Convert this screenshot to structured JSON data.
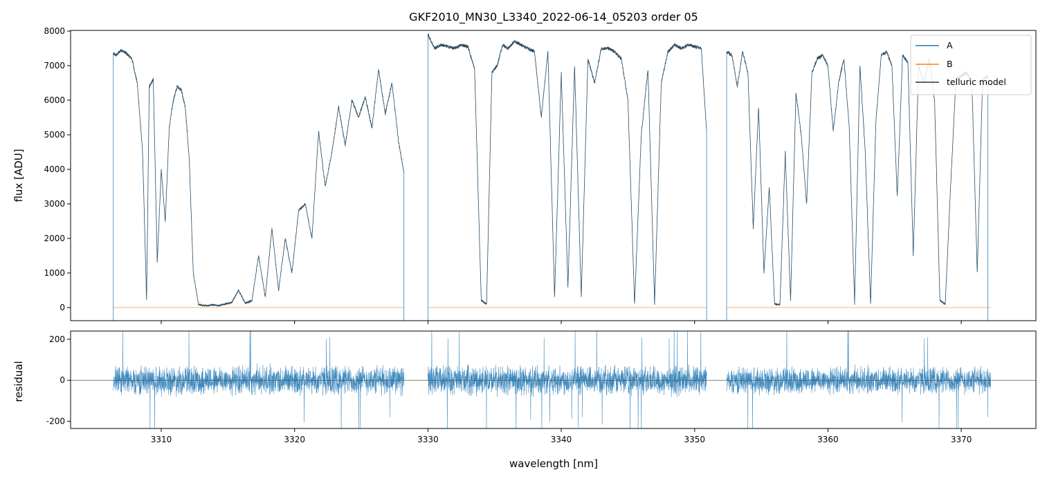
{
  "chart_data": [
    {
      "type": "line",
      "title": "GKF2010_MN30_L3340_2022-06-14_05203  order 05",
      "xlabel": "",
      "ylabel": "flux [ADU]",
      "xlim": [
        3303.2,
        3375.6
      ],
      "ylim": [
        -380,
        8020
      ],
      "yticks": [
        0,
        1000,
        2000,
        3000,
        4000,
        5000,
        6000,
        7000,
        8000
      ],
      "xticks": [
        3310,
        3320,
        3330,
        3340,
        3350,
        3360,
        3370
      ],
      "grid": false,
      "legend": {
        "position": "top-right",
        "entries": [
          {
            "label": "A",
            "color": "#1f77b4"
          },
          {
            "label": "B",
            "color": "#ff7f0e"
          },
          {
            "label": "telluric model",
            "color": "#333333"
          }
        ]
      },
      "series": [
        {
          "name": "A",
          "color": "#1f77b4",
          "segments": [
            {
              "x": [
                3306.4,
                3306.6,
                3307.0,
                3307.4,
                3307.8,
                3308.2,
                3308.6,
                3308.9,
                3309.1,
                3309.4,
                3309.7,
                3310.0,
                3310.3,
                3310.6,
                3310.9,
                3311.2,
                3311.5,
                3311.8,
                3312.1,
                3312.4,
                3312.8,
                3313.3,
                3313.8,
                3314.3,
                3314.8,
                3315.3,
                3315.8,
                3316.3,
                3316.8,
                3317.3,
                3317.8,
                3318.3,
                3318.8,
                3319.3,
                3319.8,
                3320.3,
                3320.8,
                3321.3,
                3321.8,
                3322.3,
                3322.8,
                3323.3,
                3323.8,
                3324.3,
                3324.8,
                3325.3,
                3325.8,
                3326.3,
                3326.8,
                3327.3,
                3327.8,
                3328.2
              ],
              "y": [
                7350,
                7300,
                7450,
                7350,
                7200,
                6500,
                4500,
                200,
                6400,
                6600,
                1300,
                4000,
                2500,
                5200,
                6000,
                6400,
                6300,
                5800,
                4300,
                1000,
                80,
                50,
                80,
                60,
                100,
                150,
                500,
                120,
                200,
                1500,
                300,
                2300,
                500,
                2000,
                1000,
                2800,
                3000,
                2000,
                5100,
                3500,
                4500,
                5800,
                4700,
                6000,
                5500,
                6100,
                5200,
                6900,
                5600,
                6500,
                4800,
                3900
              ]
            },
            {
              "x": [
                3330.0,
                3330.5,
                3331.0,
                3331.5,
                3332.0,
                3332.5,
                3333.0,
                3333.5,
                3334.0,
                3334.4,
                3334.8,
                3335.2,
                3335.6,
                3336.0,
                3336.5,
                3337.0,
                3337.5,
                3338.0,
                3338.5,
                3339.0,
                3339.5,
                3340.0,
                3340.5,
                3341.0,
                3341.5,
                3342.0,
                3342.5,
                3343.0,
                3343.5,
                3344.0,
                3344.5,
                3345.0,
                3345.5,
                3346.0,
                3346.5,
                3347.0,
                3347.5,
                3348.0,
                3348.5,
                3349.0,
                3349.5,
                3350.0,
                3350.5,
                3350.9
              ],
              "y": [
                7900,
                7500,
                7600,
                7550,
                7500,
                7600,
                7550,
                6900,
                200,
                100,
                6800,
                7000,
                7600,
                7500,
                7700,
                7600,
                7500,
                7400,
                5500,
                7400,
                300,
                6800,
                600,
                7000,
                300,
                7200,
                6500,
                7500,
                7500,
                7400,
                7200,
                6000,
                100,
                5000,
                6900,
                100,
                6500,
                7400,
                7600,
                7500,
                7600,
                7550,
                7500,
                5100
              ]
            },
            {
              "x": [
                3352.4,
                3352.8,
                3353.2,
                3353.6,
                3354.0,
                3354.4,
                3354.8,
                3355.2,
                3355.6,
                3356.0,
                3356.4,
                3356.8,
                3357.2,
                3357.6,
                3358.0,
                3358.4,
                3358.8,
                3359.2,
                3359.6,
                3360.0,
                3360.4,
                3360.8,
                3361.2,
                3361.6,
                3362.0,
                3362.4,
                3362.8,
                3363.2,
                3363.6,
                3364.0,
                3364.4,
                3364.8,
                3365.2,
                3365.6,
                3366.0,
                3366.4,
                3366.8,
                3367.2,
                3367.6,
                3368.0,
                3368.4,
                3368.8,
                3369.2,
                3369.6,
                3370.0,
                3370.4,
                3370.8,
                3371.2,
                3371.6,
                3372.0
              ],
              "y": [
                7400,
                7300,
                6400,
                7400,
                6800,
                2300,
                5800,
                1000,
                3500,
                100,
                80,
                4500,
                200,
                6200,
                5000,
                3000,
                6800,
                7200,
                7300,
                7000,
                5100,
                6500,
                7200,
                5200,
                100,
                7000,
                4500,
                100,
                5400,
                7300,
                7400,
                7000,
                3200,
                7300,
                7100,
                1500,
                7000,
                6500,
                7200,
                6000,
                200,
                100,
                3500,
                6600,
                6700,
                6800,
                6500,
                1000,
                6600,
                6700
              ]
            }
          ]
        },
        {
          "name": "B",
          "color": "#ff7f0e",
          "segments": [
            {
              "x": [
                3306.4,
                3328.2
              ],
              "y": [
                0,
                0
              ]
            },
            {
              "x": [
                3330.0,
                3350.9
              ],
              "y": [
                0,
                0
              ]
            },
            {
              "x": [
                3352.4,
                3372.2
              ],
              "y": [
                0,
                0
              ]
            }
          ]
        },
        {
          "name": "telluric model",
          "color": "#333333",
          "segments": []
        }
      ]
    },
    {
      "type": "line",
      "title": "",
      "xlabel": "wavelength [nm]",
      "ylabel": "residual",
      "xlim": [
        3303.2,
        3375.6
      ],
      "ylim": [
        -235,
        240
      ],
      "yticks": [
        -200,
        0,
        200
      ],
      "xticks": [
        3310,
        3320,
        3330,
        3340,
        3350,
        3360,
        3370
      ],
      "xticklabels": [
        "3310",
        "3320",
        "3330",
        "3340",
        "3350",
        "3360",
        "3370"
      ],
      "reference_line": 0,
      "grid": false,
      "series": [
        {
          "name": "A",
          "color": "#1f77b4",
          "segments": [
            {
              "range": [
                3306.4,
                3328.2
              ],
              "amplitude": 70
            },
            {
              "range": [
                3330.0,
                3350.9
              ],
              "amplitude": 70
            },
            {
              "range": [
                3352.4,
                3372.2
              ],
              "amplitude": 65
            }
          ]
        }
      ]
    }
  ]
}
